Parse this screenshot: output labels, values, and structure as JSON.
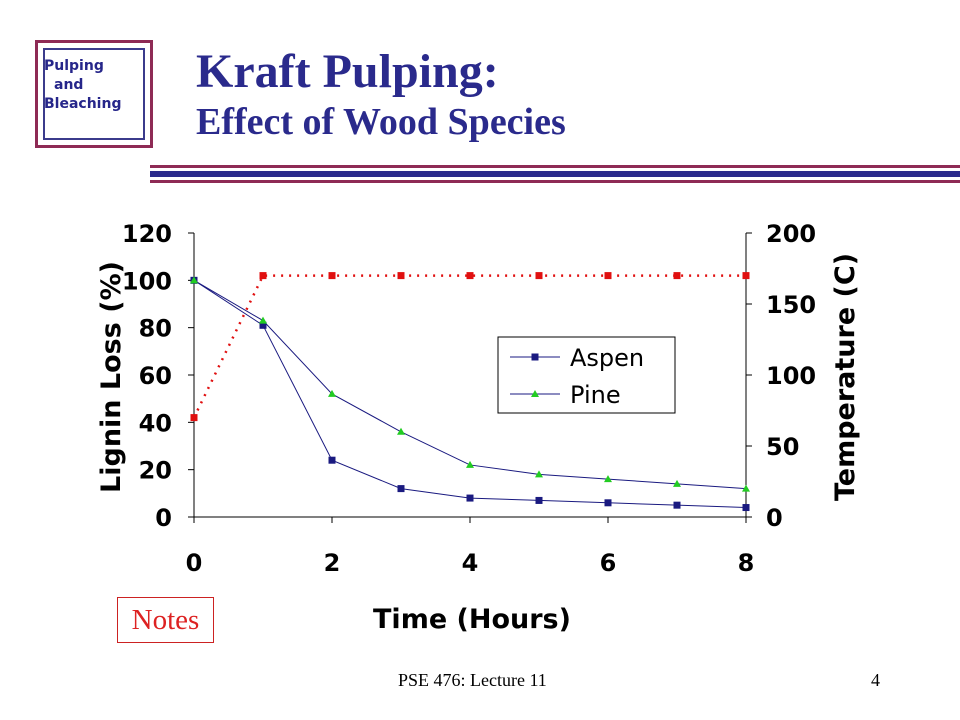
{
  "header": {
    "logo_lines": [
      "Pulping",
      "and",
      "Bleaching"
    ],
    "title_line1": "Kraft Pulping:",
    "title_line2": "Effect of Wood Species",
    "colors": {
      "title": "#2a2a8c",
      "rule_red": "#8e2a55",
      "rule_blue": "#2a2a8c"
    }
  },
  "notes_button": "Notes",
  "footer": {
    "course": "PSE 476: Lecture 11",
    "page": "4"
  },
  "chart_data": {
    "type": "line",
    "title": "",
    "xlabel": "Time (Hours)",
    "ylabel": "Lignin Loss (%)",
    "y2label": "Temperature (C)",
    "xlim": [
      0,
      8
    ],
    "ylim": [
      0,
      120
    ],
    "y2lim": [
      0,
      200
    ],
    "x_ticks": [
      "0",
      "2",
      "4",
      "6",
      "8"
    ],
    "y_ticks": [
      "0",
      "20",
      "40",
      "60",
      "80",
      "100",
      "120"
    ],
    "y2_ticks": [
      "0",
      "50",
      "100",
      "150",
      "200"
    ],
    "grid": false,
    "legend_position": "center-right",
    "series": [
      {
        "name": "Aspen",
        "axis": "left",
        "marker": "square",
        "color": "#1a1a80",
        "line": "solid",
        "x": [
          0,
          1,
          2,
          3,
          4,
          5,
          6,
          7,
          8
        ],
        "values": [
          100,
          81,
          24,
          12,
          8,
          7,
          6,
          5,
          4
        ]
      },
      {
        "name": "Pine",
        "axis": "left",
        "marker": "triangle",
        "color": "#22cc22",
        "line": "solid",
        "x": [
          0,
          1,
          2,
          3,
          4,
          5,
          6,
          7,
          8
        ],
        "values": [
          100,
          83,
          52,
          36,
          22,
          18,
          16,
          14,
          12
        ]
      },
      {
        "name": "",
        "axis": "right",
        "marker": "square",
        "color": "#e01010",
        "line": "dotted",
        "x": [
          0,
          1,
          2,
          3,
          4,
          5,
          6,
          7,
          8
        ],
        "values": [
          70,
          170,
          170,
          170,
          170,
          170,
          170,
          170,
          170
        ]
      }
    ]
  }
}
